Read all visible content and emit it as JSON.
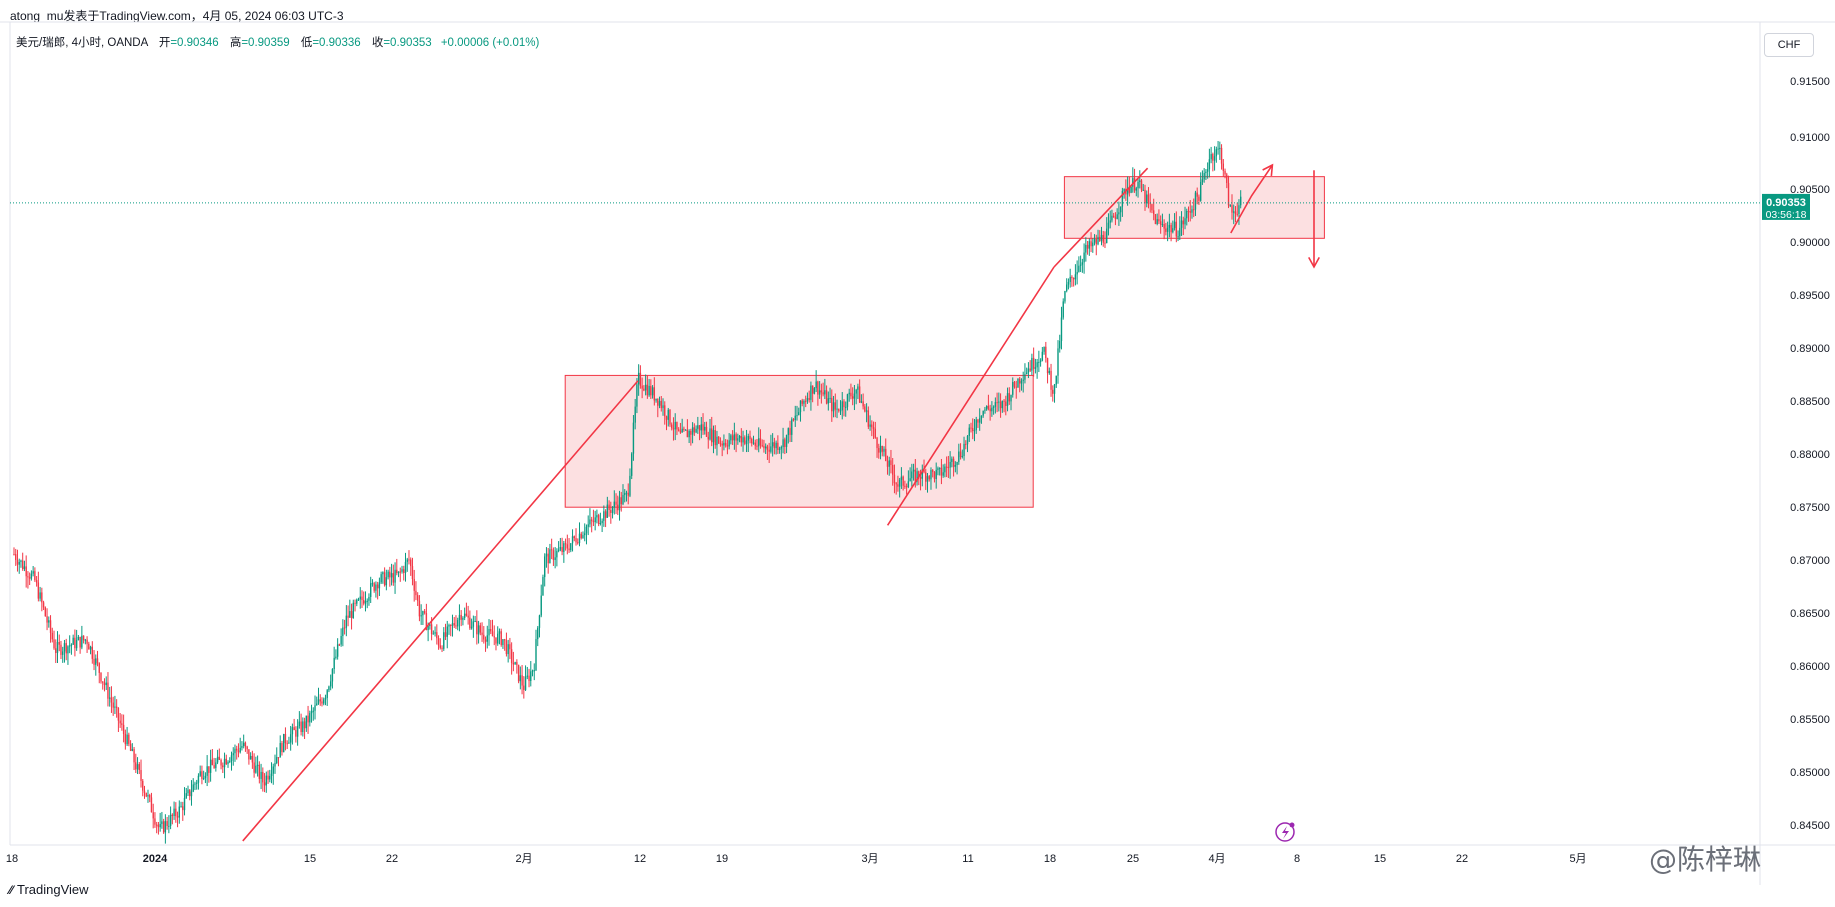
{
  "header": {
    "published_by": "atong_mu发表于TradingView.com，4月 05, 2024 06:03 UTC-3"
  },
  "legend": {
    "symbol": "美元/瑞郎, 4小时, OANDA",
    "open_label": "开",
    "open": "=0.90346",
    "high_label": "高",
    "high": "=0.90359",
    "low_label": "低",
    "low": "=0.90336",
    "close_label": "收",
    "close": "=0.90353",
    "change": "+0.00006 (+0.01%)"
  },
  "currency_button": "CHF",
  "price_axis": {
    "ticks": [
      "0.91500",
      "0.91000",
      "0.90500",
      "0.90000",
      "0.89500",
      "0.89000",
      "0.88500",
      "0.88000",
      "0.87500",
      "0.87000",
      "0.86500",
      "0.86000",
      "0.85500",
      "0.85000",
      "0.84500"
    ],
    "last_price": "0.90353",
    "countdown": "03:56:18"
  },
  "time_axis": {
    "ticks": [
      "18",
      "2024",
      "15",
      "22",
      "2月",
      "12",
      "19",
      "3月",
      "11",
      "18",
      "25",
      "4月",
      "8",
      "15",
      "22",
      "5月"
    ]
  },
  "footer": {
    "brand": "TradingView"
  },
  "watermark": "@陈梓琳",
  "colors": {
    "up": "#089981",
    "down": "#f23645",
    "drawing": "#f23645",
    "zone_fill": "#fbdadc",
    "price_line": "#089981"
  },
  "chart_data": {
    "type": "candlestick",
    "ylim": [
      0.8435,
      0.918
    ],
    "last_price": 0.90353,
    "path": [
      [
        "2023-12-18",
        0.8705
      ],
      [
        "2023-12-20",
        0.868
      ],
      [
        "2023-12-22",
        0.8615
      ],
      [
        "2023-12-25",
        0.8625
      ],
      [
        "2023-12-27",
        0.8575
      ],
      [
        "2023-12-29",
        0.8525
      ],
      [
        "2024-01-01",
        0.8445
      ],
      [
        "2024-01-03",
        0.8465
      ],
      [
        "2024-01-05",
        0.85
      ],
      [
        "2024-01-07",
        0.851
      ],
      [
        "2024-01-09",
        0.8525
      ],
      [
        "2024-01-11",
        0.849
      ],
      [
        "2024-01-13",
        0.853
      ],
      [
        "2024-01-15",
        0.8545
      ],
      [
        "2024-01-17",
        0.8575
      ],
      [
        "2024-01-19",
        0.8645
      ],
      [
        "2024-01-22",
        0.868
      ],
      [
        "2024-01-24",
        0.8685
      ],
      [
        "2024-01-25",
        0.87
      ],
      [
        "2024-01-26",
        0.865
      ],
      [
        "2024-01-28",
        0.862
      ],
      [
        "2024-01-30",
        0.865
      ],
      [
        "2024-02-01",
        0.863
      ],
      [
        "2024-02-03",
        0.8625
      ],
      [
        "2024-02-05",
        0.858
      ],
      [
        "2024-02-06",
        0.86
      ],
      [
        "2024-02-07",
        0.87
      ],
      [
        "2024-02-09",
        0.871
      ],
      [
        "2024-02-11",
        0.873
      ],
      [
        "2024-02-13",
        0.8745
      ],
      [
        "2024-02-15",
        0.876
      ],
      [
        "2024-02-16",
        0.887
      ],
      [
        "2024-02-18",
        0.885
      ],
      [
        "2024-02-20",
        0.8815
      ],
      [
        "2024-02-22",
        0.8825
      ],
      [
        "2024-02-24",
        0.881
      ],
      [
        "2024-02-26",
        0.8815
      ],
      [
        "2024-02-28",
        0.8805
      ],
      [
        "2024-03-01",
        0.881
      ],
      [
        "2024-03-03",
        0.885
      ],
      [
        "2024-03-04",
        0.8865
      ],
      [
        "2024-03-06",
        0.884
      ],
      [
        "2024-03-08",
        0.886
      ],
      [
        "2024-03-10",
        0.881
      ],
      [
        "2024-03-12",
        0.877
      ],
      [
        "2024-03-14",
        0.878
      ],
      [
        "2024-03-16",
        0.878
      ],
      [
        "2024-03-18",
        0.88
      ],
      [
        "2024-03-20",
        0.884
      ],
      [
        "2024-03-22",
        0.8845
      ],
      [
        "2024-03-24",
        0.8875
      ],
      [
        "2024-03-26",
        0.8895
      ],
      [
        "2024-03-27",
        0.8855
      ],
      [
        "2024-03-28",
        0.895
      ],
      [
        "2024-03-30",
        0.899
      ],
      [
        "2024-04-01",
        0.9005
      ],
      [
        "2024-04-03",
        0.905
      ],
      [
        "2024-04-04",
        0.9055
      ],
      [
        "2024-04-06",
        0.9015
      ],
      [
        "2024-04-08",
        0.901
      ],
      [
        "2024-04-10",
        0.9045
      ],
      [
        "2024-04-11",
        0.908
      ],
      [
        "2024-04-12",
        0.9085
      ],
      [
        "2024-04-13",
        0.9025
      ],
      [
        "2024-04-14",
        0.9035
      ]
    ],
    "drawings": {
      "zones": [
        {
          "from": "2024-02-09",
          "to": "2024-03-25",
          "price_low": 0.8749,
          "price_high": 0.8873
        },
        {
          "from": "2024-03-28",
          "to": "2024-04-22",
          "price_low": 0.9002,
          "price_high": 0.906
        }
      ],
      "trendlines": [
        {
          "from": [
            "2024-01-09",
            0.8435
          ],
          "to": [
            "2024-02-16",
            0.8868
          ]
        },
        {
          "from": [
            "2024-03-11",
            0.8732
          ],
          "to": [
            "2024-03-27",
            0.8975
          ]
        },
        {
          "from": [
            "2024-03-27",
            0.8975
          ],
          "to": [
            "2024-04-05",
            0.9068
          ]
        }
      ],
      "arrows": [
        {
          "points": [
            [
              "2024-04-13",
              0.9007
            ],
            [
              "2024-04-15",
              0.9042
            ],
            [
              "2024-04-17",
              0.9071
            ]
          ],
          "direction": "up"
        },
        {
          "points": [
            [
              "2024-04-21",
              0.9066
            ],
            [
              "2024-04-21",
              0.8975
            ]
          ],
          "direction": "down"
        }
      ]
    }
  }
}
